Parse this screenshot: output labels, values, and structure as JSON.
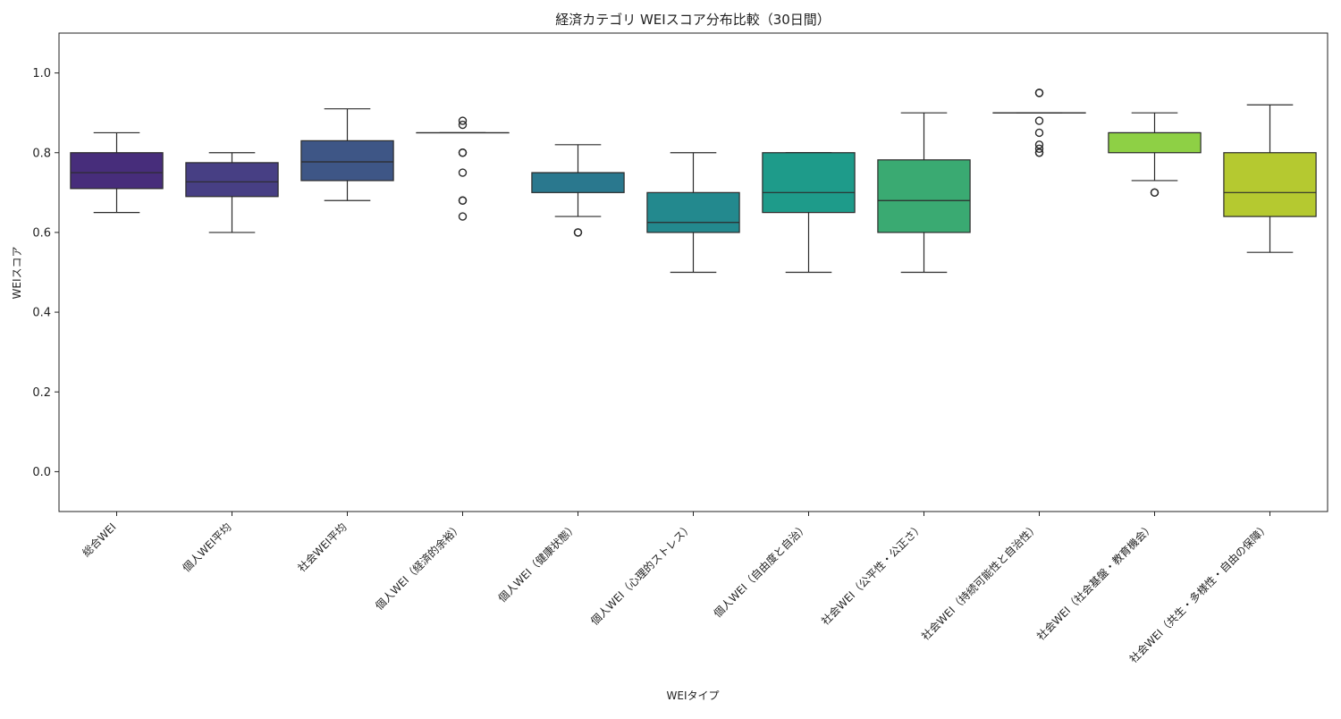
{
  "chart_data": {
    "type": "box",
    "title": "経済カテゴリ WEIスコア分布比較（30日間）",
    "xlabel": "WEIタイプ",
    "ylabel": "WEIスコア",
    "ylim": [
      -0.1,
      1.1
    ],
    "yticks": [
      0.0,
      0.2,
      0.4,
      0.6,
      0.8,
      1.0
    ],
    "ytick_labels": [
      "0.0",
      "0.2",
      "0.4",
      "0.6",
      "0.8",
      "1.0"
    ],
    "grid": false,
    "categories": [
      "総合WEI",
      "個人WEI平均",
      "社会WEI平均",
      "個人WEI（経済的余裕）",
      "個人WEI（健康状態）",
      "個人WEI（心理的ストレス）",
      "個人WEI（自由度と自治）",
      "社会WEI（公平性・公正さ）",
      "社会WEI（持続可能性と自治性）",
      "社会WEI（社会基盤・教育機会）",
      "社会WEI（共生・多様性・自由の保障）"
    ],
    "boxes": [
      {
        "whisker_low": 0.65,
        "q1": 0.71,
        "median": 0.75,
        "q3": 0.8,
        "whisker_high": 0.85,
        "outliers": [],
        "color": "#472d7b"
      },
      {
        "whisker_low": 0.6,
        "q1": 0.69,
        "median": 0.727,
        "q3": 0.775,
        "whisker_high": 0.8,
        "outliers": [],
        "color": "#473f84"
      },
      {
        "whisker_low": 0.68,
        "q1": 0.73,
        "median": 0.777,
        "q3": 0.83,
        "whisker_high": 0.91,
        "outliers": [],
        "color": "#3e5686"
      },
      {
        "whisker_low": 0.85,
        "q1": 0.85,
        "median": 0.85,
        "q3": 0.85,
        "whisker_high": 0.85,
        "outliers": [
          0.88,
          0.87,
          0.8,
          0.8,
          0.75,
          0.68,
          0.68,
          0.64
        ],
        "color": "#34698c"
      },
      {
        "whisker_low": 0.64,
        "q1": 0.7,
        "median": 0.75,
        "q3": 0.75,
        "whisker_high": 0.82,
        "outliers": [
          0.6,
          0.6
        ],
        "color": "#2a788e"
      },
      {
        "whisker_low": 0.5,
        "q1": 0.6,
        "median": 0.625,
        "q3": 0.7,
        "whisker_high": 0.8,
        "outliers": [],
        "color": "#23898e"
      },
      {
        "whisker_low": 0.5,
        "q1": 0.65,
        "median": 0.7,
        "q3": 0.8,
        "whisker_high": 0.8,
        "outliers": [],
        "color": "#1e9b8a"
      },
      {
        "whisker_low": 0.5,
        "q1": 0.6,
        "median": 0.68,
        "q3": 0.782,
        "whisker_high": 0.9,
        "outliers": [],
        "color": "#3aaa72"
      },
      {
        "whisker_low": 0.9,
        "q1": 0.9,
        "median": 0.9,
        "q3": 0.9,
        "whisker_high": 0.9,
        "outliers": [
          0.95,
          0.95,
          0.88,
          0.85,
          0.82,
          0.81,
          0.8,
          0.8
        ],
        "color": "#5ec962"
      },
      {
        "whisker_low": 0.73,
        "q1": 0.8,
        "median": 0.85,
        "q3": 0.85,
        "whisker_high": 0.9,
        "outliers": [
          0.7,
          0.7
        ],
        "color": "#8ed045"
      },
      {
        "whisker_low": 0.55,
        "q1": 0.64,
        "median": 0.7,
        "q3": 0.8,
        "whisker_high": 0.92,
        "outliers": [],
        "color": "#b5c930"
      }
    ]
  }
}
